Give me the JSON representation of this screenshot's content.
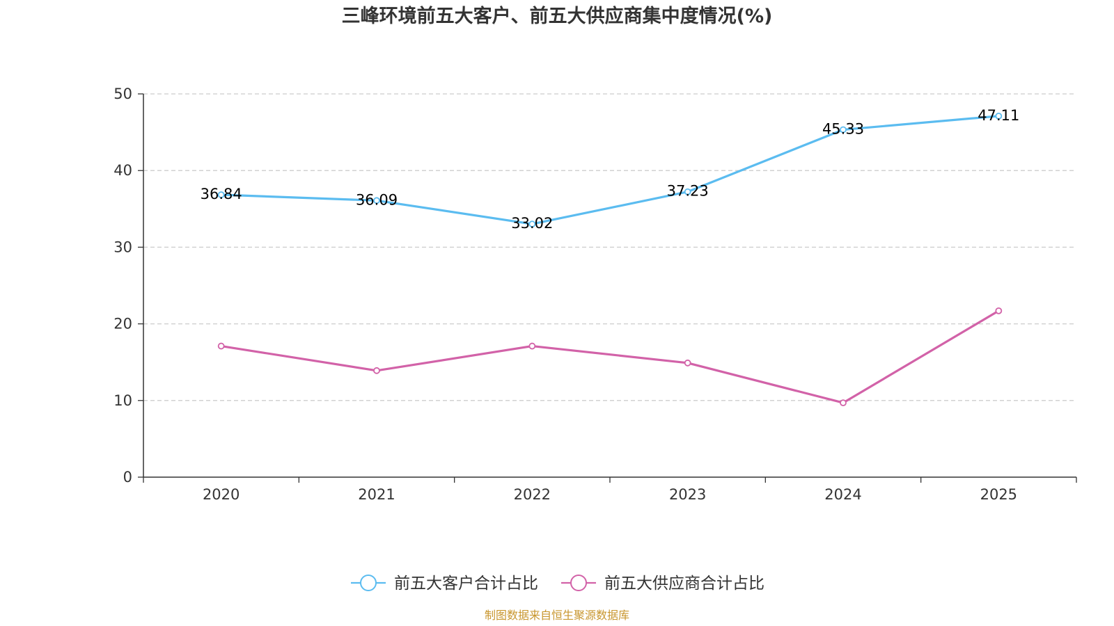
{
  "chart_data": {
    "type": "line",
    "title": "三峰环境前五大客户、前五大供应商集中度情况(%)",
    "categories": [
      "2020",
      "2021",
      "2022",
      "2023",
      "2024",
      "2025"
    ],
    "ylim": [
      0,
      50
    ],
    "yticks": [
      0,
      10,
      20,
      30,
      40,
      50
    ],
    "grid": true,
    "legend_position": "bottom",
    "series": [
      {
        "name": "前五大客户合计占比",
        "color": "#5bbcf0",
        "values": [
          36.84,
          36.09,
          33.02,
          37.23,
          45.33,
          47.11
        ],
        "labels": [
          "36.84",
          "36.09",
          "33.02",
          "37.23",
          "45.33",
          "47.11"
        ],
        "show_labels": true
      },
      {
        "name": "前五大供应商合计占比",
        "color": "#d262a8",
        "values": [
          17.1,
          13.9,
          17.1,
          14.9,
          9.7,
          21.7
        ],
        "show_labels": false
      }
    ],
    "source": "制图数据来自恒生聚源数据库"
  }
}
